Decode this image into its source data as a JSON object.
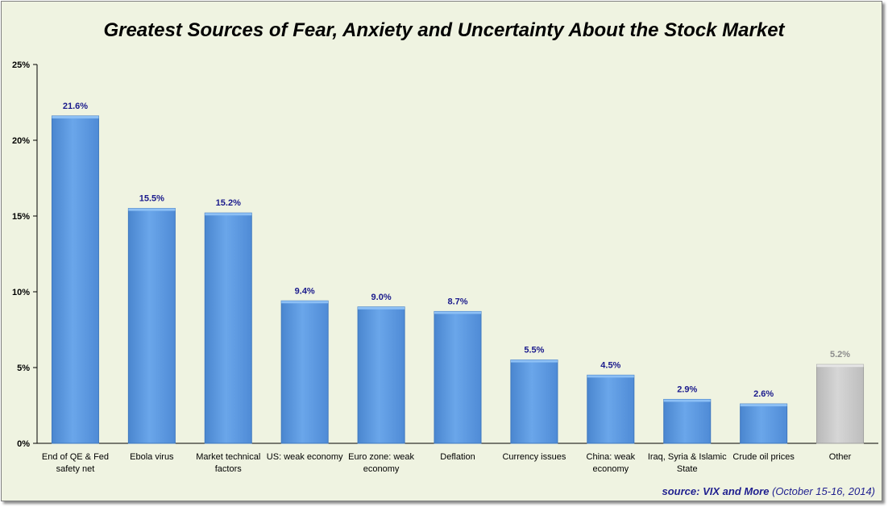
{
  "chart_data": {
    "type": "bar",
    "title": "Greatest Sources of Fear, Anxiety and Uncertainty About the Stock Market",
    "xlabel": "",
    "ylabel": "",
    "ylim": [
      0,
      25
    ],
    "y_ticks": [
      "0%",
      "5%",
      "10%",
      "15%",
      "20%",
      "25%"
    ],
    "y_tick_values": [
      0,
      5,
      10,
      15,
      20,
      25
    ],
    "grid": false,
    "legend": "none",
    "categories": [
      [
        "End of QE & Fed",
        "safety net"
      ],
      [
        "Ebola virus"
      ],
      [
        "Market technical",
        "factors"
      ],
      [
        "US: weak economy"
      ],
      [
        "Euro zone: weak",
        "economy"
      ],
      [
        "Deflation"
      ],
      [
        "Currency issues"
      ],
      [
        "China: weak",
        "economy"
      ],
      [
        "Iraq, Syria & Islamic",
        "State"
      ],
      [
        "Crude oil prices"
      ],
      [
        "Other"
      ]
    ],
    "values": [
      21.6,
      15.5,
      15.2,
      9.4,
      9.0,
      8.7,
      5.5,
      4.5,
      2.9,
      2.6,
      5.2
    ],
    "value_labels": [
      "21.6%",
      "15.5%",
      "15.2%",
      "9.4%",
      "9.0%",
      "8.7%",
      "5.5%",
      "4.5%",
      "2.9%",
      "2.6%",
      "5.2%"
    ],
    "bar_colors": [
      "#5b9be2",
      "#5b9be2",
      "#5b9be2",
      "#5b9be2",
      "#5b9be2",
      "#5b9be2",
      "#5b9be2",
      "#5b9be2",
      "#5b9be2",
      "#5b9be2",
      "#c8c8c8"
    ],
    "label_colors": [
      "#1a1a8c",
      "#1a1a8c",
      "#1a1a8c",
      "#1a1a8c",
      "#1a1a8c",
      "#1a1a8c",
      "#1a1a8c",
      "#1a1a8c",
      "#1a1a8c",
      "#1a1a8c",
      "#8c8c8c"
    ]
  },
  "source": {
    "label": "source:",
    "name": "VIX and More",
    "dates": "(October 15-16, 2014)"
  }
}
